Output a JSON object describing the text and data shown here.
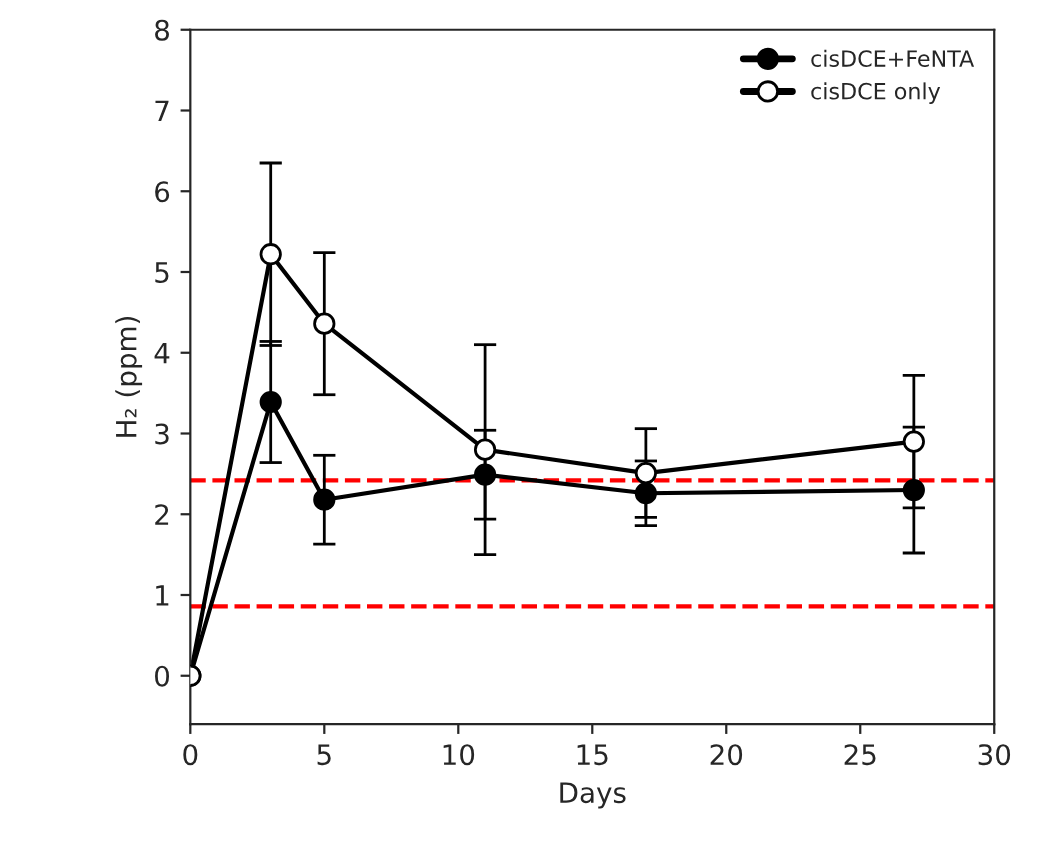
{
  "chart_data": {
    "type": "line",
    "xlabel": "Days",
    "ylabel": "H₂ (ppm)",
    "x": [
      0,
      3,
      5,
      11,
      17,
      27
    ],
    "series": [
      {
        "name": "cisDCE+FeNTA",
        "color": "#000000",
        "values": [
          0,
          3.39,
          2.18,
          2.49,
          2.26,
          2.3
        ],
        "errors": [
          null,
          0.75,
          0.55,
          0.55,
          0.4,
          0.78
        ]
      },
      {
        "name": "cisDCE only",
        "color": "#ffffff",
        "values": [
          0,
          5.22,
          4.36,
          2.8,
          2.51,
          2.9
        ],
        "errors": [
          null,
          1.13,
          0.88,
          1.3,
          0.55,
          0.82
        ]
      }
    ],
    "xlim": [
      0,
      30
    ],
    "xticks": [
      0,
      5,
      10,
      15,
      20,
      25,
      30
    ],
    "ylim": [
      -0.6,
      8
    ],
    "yticks": [
      0,
      1,
      2,
      3,
      4,
      5,
      6,
      7,
      8
    ],
    "ref_lines": [
      {
        "axis": "y",
        "value": 2.42,
        "color": "#ff0000",
        "line_style": "dashed"
      },
      {
        "axis": "y",
        "value": 0.86,
        "color": "#ff0000",
        "line_style": "dashed"
      }
    ],
    "marker": "circle",
    "line_style": "solid",
    "grid": false,
    "legend": "top right"
  }
}
